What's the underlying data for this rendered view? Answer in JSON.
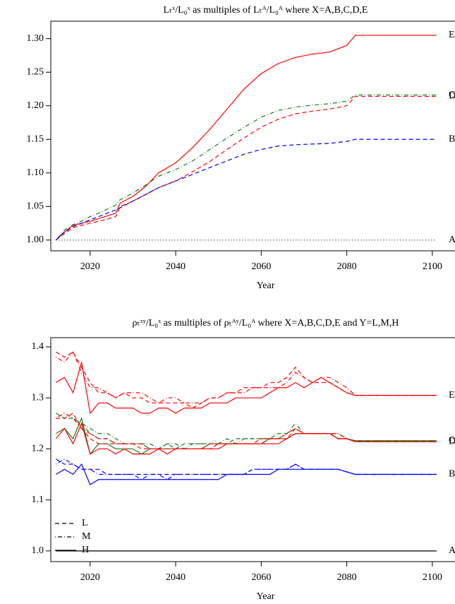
{
  "chart_data": [
    {
      "type": "line",
      "title": "Lₜˣ/L₀ˣ as multiples of Lₜᴬ/L₀ᴬ where X=A,B,C,D,E",
      "xlabel": "Year",
      "x": [
        2012,
        2014,
        2016,
        2018,
        2020,
        2022,
        2024,
        2026,
        2027,
        2030,
        2033,
        2036,
        2040,
        2044,
        2048,
        2052,
        2056,
        2060,
        2064,
        2068,
        2072,
        2076,
        2080,
        2082,
        2090,
        2101
      ],
      "xlim": [
        2010.8,
        2105.3
      ],
      "xticks": [
        2020,
        2040,
        2060,
        2080,
        2100
      ],
      "ylim": [
        0.984,
        1.326
      ],
      "yticks": [
        {
          "value": 1.0,
          "label": "1.00"
        },
        1.05,
        {
          "value": 1.1,
          "label": "1.10"
        },
        1.15,
        {
          "value": 1.2,
          "label": "1.20"
        },
        1.25,
        {
          "value": 1.3,
          "label": "1.30"
        }
      ],
      "series": [
        {
          "name": "E",
          "color": "#ff0000",
          "dash": "solid",
          "values": [
            1.0,
            1.012,
            1.022,
            1.025,
            1.028,
            1.032,
            1.036,
            1.04,
            1.055,
            1.065,
            1.08,
            1.1,
            1.115,
            1.138,
            1.165,
            1.195,
            1.225,
            1.248,
            1.263,
            1.272,
            1.277,
            1.28,
            1.29,
            1.305,
            1.305,
            1.305
          ]
        },
        {
          "name": "C",
          "color": "#1a7a1a",
          "dash": "dotdash",
          "values": [
            1.0,
            1.015,
            1.023,
            1.028,
            1.035,
            1.04,
            1.046,
            1.052,
            1.06,
            1.07,
            1.082,
            1.095,
            1.105,
            1.118,
            1.135,
            1.152,
            1.168,
            1.183,
            1.193,
            1.198,
            1.201,
            1.203,
            1.207,
            1.216,
            1.216,
            1.216
          ]
        },
        {
          "name": "D",
          "color": "#ff0000",
          "dash": "dashed",
          "values": [
            1.0,
            1.01,
            1.018,
            1.022,
            1.025,
            1.028,
            1.031,
            1.035,
            1.05,
            1.058,
            1.068,
            1.078,
            1.088,
            1.102,
            1.117,
            1.135,
            1.152,
            1.168,
            1.18,
            1.188,
            1.192,
            1.195,
            1.2,
            1.214,
            1.214,
            1.214
          ]
        },
        {
          "name": "B",
          "color": "#0000ff",
          "dash": "dashed",
          "values": [
            1.0,
            1.012,
            1.02,
            1.025,
            1.03,
            1.035,
            1.04,
            1.045,
            1.048,
            1.058,
            1.068,
            1.078,
            1.088,
            1.098,
            1.108,
            1.118,
            1.128,
            1.135,
            1.14,
            1.142,
            1.143,
            1.144,
            1.147,
            1.15,
            1.15,
            1.15
          ]
        },
        {
          "name": "A",
          "color": "#000000",
          "dash": "dotted",
          "values": [
            1.0,
            1.0,
            1.0,
            1.0,
            1.0,
            1.0,
            1.0,
            1.0,
            1.0,
            1.0,
            1.0,
            1.0,
            1.0,
            1.0,
            1.0,
            1.0,
            1.0,
            1.0,
            1.0,
            1.0,
            1.0,
            1.0,
            1.0,
            1.0,
            1.0,
            1.0
          ]
        }
      ]
    },
    {
      "type": "multiline",
      "title": "ρₜˣʸ/L₀ˣ as multiples of ρₜᴬʸ/L₀ᴬ where X=A,B,C,D,E and Y=L,M,H",
      "xlabel": "Year",
      "x": [
        2012,
        2014,
        2016,
        2018,
        2020,
        2022,
        2024,
        2026,
        2028,
        2030,
        2032,
        2034,
        2036,
        2038,
        2040,
        2042,
        2044,
        2046,
        2048,
        2050,
        2052,
        2054,
        2056,
        2058,
        2060,
        2062,
        2064,
        2066,
        2068,
        2070,
        2072,
        2074,
        2076,
        2078,
        2080,
        2082,
        2101
      ],
      "xlim": [
        2010.8,
        2105.3
      ],
      "xticks": [
        2020,
        2040,
        2060,
        2080,
        2100
      ],
      "ylim": [
        0.979,
        1.418
      ],
      "yticks": [
        {
          "value": 1.0,
          "label": "1.0"
        },
        1.1,
        1.2,
        1.3,
        1.4
      ],
      "legend": "bottomleft",
      "styles": [
        {
          "name": "L",
          "dash": "dashed"
        },
        {
          "name": "M",
          "dash": "dotdash"
        },
        {
          "name": "H",
          "dash": "solid"
        }
      ],
      "groups": [
        {
          "name": "E",
          "color": "#ff0000",
          "values": [
            [
              1.39,
              1.38,
              1.39,
              1.36,
              1.33,
              1.31,
              1.31,
              1.3,
              1.31,
              1.3,
              1.3,
              1.29,
              1.29,
              1.29,
              1.29,
              1.29,
              1.28,
              1.29,
              1.3,
              1.3,
              1.31,
              1.31,
              1.32,
              1.32,
              1.32,
              1.33,
              1.33,
              1.34,
              1.36,
              1.34,
              1.33,
              1.33,
              1.33,
              1.32,
              1.31,
              1.305,
              1.305
            ],
            [
              1.38,
              1.37,
              1.39,
              1.35,
              1.32,
              1.32,
              1.31,
              1.3,
              1.31,
              1.31,
              1.31,
              1.3,
              1.29,
              1.3,
              1.3,
              1.29,
              1.29,
              1.29,
              1.3,
              1.3,
              1.31,
              1.31,
              1.31,
              1.32,
              1.32,
              1.32,
              1.32,
              1.33,
              1.35,
              1.34,
              1.33,
              1.34,
              1.34,
              1.33,
              1.32,
              1.305,
              1.305
            ],
            [
              1.33,
              1.34,
              1.31,
              1.37,
              1.27,
              1.29,
              1.29,
              1.28,
              1.28,
              1.28,
              1.27,
              1.27,
              1.28,
              1.28,
              1.27,
              1.28,
              1.28,
              1.28,
              1.29,
              1.29,
              1.29,
              1.3,
              1.3,
              1.3,
              1.3,
              1.31,
              1.32,
              1.32,
              1.33,
              1.32,
              1.33,
              1.34,
              1.33,
              1.32,
              1.31,
              1.305,
              1.305
            ]
          ]
        },
        {
          "name": "C",
          "color": "#1a7a1a",
          "values": [
            [
              1.27,
              1.26,
              1.26,
              1.25,
              1.23,
              1.22,
              1.22,
              1.21,
              1.21,
              1.21,
              1.21,
              1.2,
              1.2,
              1.21,
              1.2,
              1.21,
              1.21,
              1.21,
              1.21,
              1.21,
              1.21,
              1.22,
              1.22,
              1.22,
              1.22,
              1.22,
              1.23,
              1.23,
              1.24,
              1.23,
              1.23,
              1.23,
              1.23,
              1.22,
              1.22,
              1.216,
              1.216
            ],
            [
              1.26,
              1.27,
              1.26,
              1.25,
              1.24,
              1.23,
              1.23,
              1.22,
              1.21,
              1.21,
              1.21,
              1.21,
              1.2,
              1.21,
              1.21,
              1.2,
              1.21,
              1.21,
              1.21,
              1.21,
              1.22,
              1.21,
              1.22,
              1.22,
              1.22,
              1.22,
              1.22,
              1.23,
              1.25,
              1.23,
              1.23,
              1.23,
              1.23,
              1.23,
              1.22,
              1.216,
              1.216
            ],
            [
              1.23,
              1.24,
              1.22,
              1.26,
              1.19,
              1.21,
              1.21,
              1.2,
              1.2,
              1.2,
              1.19,
              1.2,
              1.2,
              1.2,
              1.2,
              1.2,
              1.2,
              1.2,
              1.21,
              1.21,
              1.21,
              1.21,
              1.21,
              1.21,
              1.21,
              1.22,
              1.22,
              1.22,
              1.23,
              1.23,
              1.23,
              1.23,
              1.23,
              1.22,
              1.22,
              1.216,
              1.216
            ]
          ]
        },
        {
          "name": "D",
          "color": "#ff0000",
          "values": [
            [
              1.26,
              1.26,
              1.27,
              1.24,
              1.22,
              1.21,
              1.21,
              1.21,
              1.21,
              1.21,
              1.2,
              1.2,
              1.2,
              1.2,
              1.2,
              1.2,
              1.2,
              1.2,
              1.2,
              1.21,
              1.21,
              1.21,
              1.21,
              1.21,
              1.21,
              1.22,
              1.22,
              1.22,
              1.24,
              1.23,
              1.23,
              1.23,
              1.23,
              1.22,
              1.22,
              1.214,
              1.214
            ],
            [
              1.26,
              1.27,
              1.26,
              1.24,
              1.23,
              1.22,
              1.22,
              1.21,
              1.21,
              1.21,
              1.21,
              1.2,
              1.2,
              1.2,
              1.2,
              1.2,
              1.2,
              1.2,
              1.21,
              1.21,
              1.21,
              1.21,
              1.21,
              1.21,
              1.22,
              1.22,
              1.22,
              1.23,
              1.24,
              1.23,
              1.23,
              1.23,
              1.23,
              1.23,
              1.22,
              1.214,
              1.214
            ],
            [
              1.22,
              1.24,
              1.21,
              1.25,
              1.19,
              1.2,
              1.2,
              1.19,
              1.2,
              1.19,
              1.19,
              1.19,
              1.2,
              1.19,
              1.2,
              1.2,
              1.2,
              1.2,
              1.2,
              1.2,
              1.21,
              1.21,
              1.21,
              1.21,
              1.21,
              1.21,
              1.21,
              1.22,
              1.23,
              1.23,
              1.23,
              1.23,
              1.23,
              1.22,
              1.22,
              1.214,
              1.214
            ]
          ]
        },
        {
          "name": "B",
          "color": "#0000ff",
          "values": [
            [
              1.18,
              1.17,
              1.17,
              1.16,
              1.16,
              1.16,
              1.15,
              1.15,
              1.15,
              1.15,
              1.15,
              1.15,
              1.15,
              1.15,
              1.15,
              1.15,
              1.15,
              1.15,
              1.15,
              1.15,
              1.15,
              1.15,
              1.15,
              1.16,
              1.16,
              1.16,
              1.16,
              1.16,
              1.17,
              1.16,
              1.16,
              1.16,
              1.16,
              1.16,
              1.155,
              1.15,
              1.15
            ],
            [
              1.17,
              1.18,
              1.17,
              1.16,
              1.16,
              1.15,
              1.15,
              1.15,
              1.15,
              1.15,
              1.14,
              1.15,
              1.15,
              1.14,
              1.15,
              1.15,
              1.15,
              1.15,
              1.15,
              1.15,
              1.15,
              1.15,
              1.15,
              1.16,
              1.16,
              1.16,
              1.16,
              1.16,
              1.17,
              1.16,
              1.16,
              1.16,
              1.16,
              1.16,
              1.155,
              1.15,
              1.15
            ],
            [
              1.15,
              1.16,
              1.15,
              1.17,
              1.13,
              1.14,
              1.14,
              1.14,
              1.14,
              1.14,
              1.14,
              1.14,
              1.14,
              1.14,
              1.14,
              1.14,
              1.14,
              1.14,
              1.14,
              1.14,
              1.15,
              1.15,
              1.15,
              1.15,
              1.15,
              1.15,
              1.16,
              1.16,
              1.16,
              1.16,
              1.16,
              1.16,
              1.16,
              1.16,
              1.155,
              1.15,
              1.15
            ]
          ]
        },
        {
          "name": "A",
          "color": "#000000",
          "dash": "solid",
          "values": [
            [
              1.0,
              1.0,
              1.0,
              1.0,
              1.0,
              1.0,
              1.0,
              1.0,
              1.0,
              1.0,
              1.0,
              1.0,
              1.0,
              1.0,
              1.0,
              1.0,
              1.0,
              1.0,
              1.0,
              1.0,
              1.0,
              1.0,
              1.0,
              1.0,
              1.0,
              1.0,
              1.0,
              1.0,
              1.0,
              1.0,
              1.0,
              1.0,
              1.0,
              1.0,
              1.0,
              1.0,
              1.0
            ]
          ]
        }
      ]
    }
  ]
}
